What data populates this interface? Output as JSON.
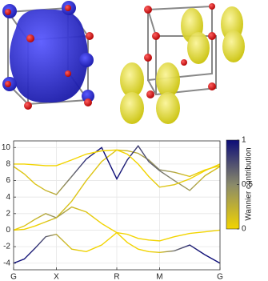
{
  "chart_data": {
    "type": "line",
    "x": [
      0,
      0.125,
      0.25,
      0.375,
      0.5,
      0.68,
      0.85,
      1.03,
      1.207,
      1.33,
      1.457,
      1.58,
      1.707,
      1.88,
      2.06,
      2.24,
      2.414
    ],
    "series": [
      {
        "values": [
          -4,
          -3.5,
          -2.2,
          -0.8,
          -0.5,
          -2.3,
          -2.6,
          -1.8,
          -0.3,
          -1.5,
          -2.3,
          -2.6,
          -2.7,
          -2.5,
          -1.8,
          -3.0,
          -4
        ],
        "weights": [
          1,
          1,
          0.9,
          0.7,
          0.3,
          0.1,
          0,
          0,
          0,
          0,
          0,
          0,
          0.1,
          0.6,
          0.9,
          1,
          1
        ]
      },
      {
        "values": [
          0,
          0.5,
          1.3,
          2.0,
          1.5,
          2.8,
          2.2,
          0.8,
          -0.3,
          -0.5,
          -1.0,
          -1.2,
          -1.3,
          -0.8,
          -0.4,
          -0.2,
          0
        ],
        "weights": [
          0,
          0.1,
          0.2,
          0.3,
          0.5,
          0.2,
          0.1,
          0,
          0,
          0,
          0,
          0,
          0,
          0,
          0,
          0,
          0
        ]
      },
      {
        "values": [
          0,
          0.1,
          0.5,
          1.0,
          1.5,
          3.5,
          6.0,
          8.3,
          9.7,
          9.6,
          9.3,
          8.5,
          7.3,
          7.0,
          6.5,
          7.3,
          7.8
        ],
        "weights": [
          0,
          0,
          0,
          0.1,
          0.2,
          0.1,
          0.1,
          0.1,
          0.1,
          0.2,
          0.3,
          0.4,
          0.5,
          0.3,
          0.1,
          0,
          0
        ]
      },
      {
        "values": [
          7.7,
          6.8,
          5.6,
          4.8,
          4.3,
          6.5,
          8.6,
          10.0,
          6.2,
          8.5,
          10.2,
          8.3,
          7.2,
          6.0,
          4.8,
          6.6,
          7.7
        ],
        "weights": [
          0.1,
          0.1,
          0.1,
          0.2,
          0.3,
          0.6,
          0.9,
          1,
          1,
          0.9,
          0.8,
          0.7,
          0.6,
          0.5,
          0.4,
          0.2,
          0.1
        ]
      },
      {
        "values": [
          8,
          8,
          7.9,
          7.8,
          7.8,
          8.5,
          9.2,
          9.6,
          9.7,
          9.2,
          8.0,
          6.5,
          5.2,
          5.5,
          6.2,
          7.2,
          8
        ],
        "weights": [
          0,
          0,
          0,
          0,
          0,
          0,
          0,
          0,
          0,
          0,
          0,
          0,
          0.1,
          0.1,
          0,
          0,
          0
        ]
      }
    ],
    "xlim": [
      0,
      2.414
    ],
    "xticks": [
      {
        "value": 0,
        "label": "G"
      },
      {
        "value": 0.5,
        "label": "X"
      },
      {
        "value": 1.207,
        "label": "R"
      },
      {
        "value": 1.707,
        "label": "M"
      },
      {
        "value": 2.414,
        "label": "G"
      }
    ],
    "ylim": [
      -4.8,
      10.8
    ],
    "yticks": [
      -4,
      -2,
      0,
      2,
      4,
      6,
      8,
      10
    ],
    "grid": true,
    "colorbar": {
      "label": "Wannier contribution",
      "lim": [
        0,
        1
      ],
      "ticks": [
        0,
        0.5,
        1
      ],
      "colors": [
        "#f2d400",
        "#8a8a6a",
        "#0d0d78"
      ]
    }
  }
}
